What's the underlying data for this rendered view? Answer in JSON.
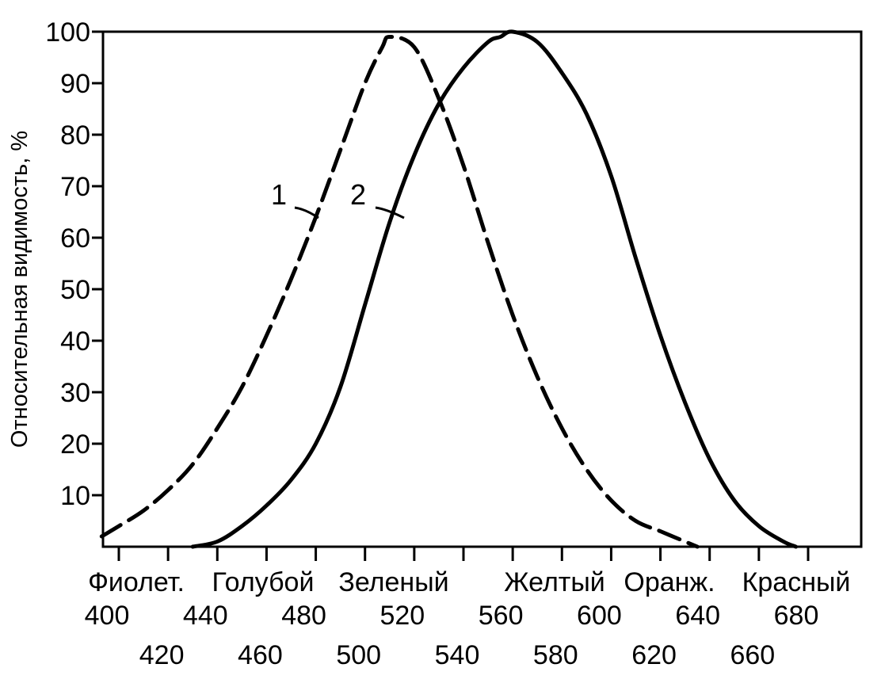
{
  "chart_data": {
    "type": "line",
    "title": "",
    "ylabel": "Относительная видимость, %",
    "xlabel": "",
    "xlim": [
      390,
      690
    ],
    "ylim": [
      0,
      100
    ],
    "y_ticks": [
      10,
      20,
      30,
      40,
      50,
      60,
      70,
      80,
      90,
      100
    ],
    "x_ticks_upper": [
      400,
      440,
      480,
      520,
      560,
      600,
      640,
      680
    ],
    "x_ticks_lower": [
      420,
      460,
      500,
      540,
      580,
      620,
      660
    ],
    "color_bands": [
      "Фиолет.",
      "Голубой",
      "Зеленый",
      "Желтый",
      "Оранж.",
      "Красный"
    ],
    "grid": false,
    "legend": "none",
    "series": [
      {
        "name": "1",
        "style": "dashed",
        "x": [
          393,
          400,
          410,
          420,
          430,
          440,
          450,
          460,
          470,
          480,
          490,
          500,
          507,
          510,
          520,
          530,
          540,
          550,
          560,
          570,
          580,
          590,
          600,
          610,
          620,
          630,
          635
        ],
        "y": [
          2,
          4,
          7,
          11,
          16,
          23,
          31,
          41,
          52,
          64,
          77,
          90,
          97,
          99,
          97,
          87,
          74,
          59,
          45,
          33,
          23,
          15,
          9,
          5,
          3,
          1,
          0
        ]
      },
      {
        "name": "2",
        "style": "solid",
        "x": [
          430,
          440,
          450,
          460,
          470,
          480,
          490,
          500,
          510,
          520,
          530,
          540,
          550,
          555,
          560,
          570,
          580,
          590,
          600,
          610,
          620,
          630,
          640,
          650,
          660,
          670,
          675
        ],
        "y": [
          0,
          1,
          4,
          8,
          13,
          20,
          31,
          47,
          63,
          76,
          86,
          93,
          98,
          99,
          100,
          98,
          92,
          84,
          72,
          56,
          41,
          28,
          17,
          9,
          4,
          1,
          0
        ]
      }
    ]
  }
}
